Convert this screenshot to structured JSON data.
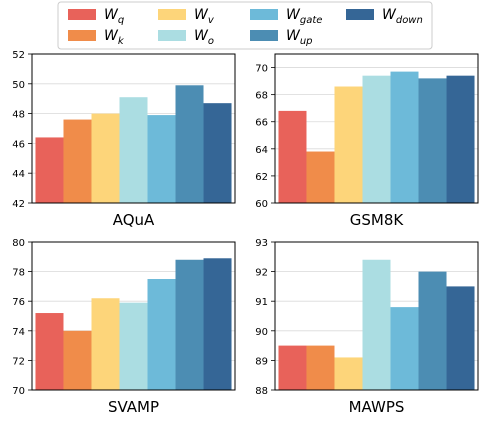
{
  "legend": {
    "placement": "top-center",
    "entries": [
      {
        "base": "W",
        "sub": "q",
        "color": "#e8625a"
      },
      {
        "base": "W",
        "sub": "k",
        "color": "#f08c4a"
      },
      {
        "base": "W",
        "sub": "v",
        "color": "#fdd57a"
      },
      {
        "base": "W",
        "sub": "o",
        "color": "#abdde2"
      },
      {
        "base": "W",
        "sub": "gate",
        "color": "#6dbad9"
      },
      {
        "base": "W",
        "sub": "up",
        "color": "#4c8db3"
      },
      {
        "base": "W",
        "sub": "down",
        "color": "#356696"
      }
    ]
  },
  "chart_data": [
    {
      "type": "bar",
      "title": "AQuA",
      "categories": [
        "Wq",
        "Wk",
        "Wv",
        "Wo",
        "Wgate",
        "Wup",
        "Wdown"
      ],
      "values": [
        46.4,
        47.6,
        48.0,
        49.1,
        47.9,
        49.9,
        48.7
      ],
      "ylim": [
        42,
        52
      ],
      "yticks": [
        "42",
        "44",
        "46",
        "48",
        "50",
        "52"
      ],
      "grid": true
    },
    {
      "type": "bar",
      "title": "GSM8K",
      "categories": [
        "Wq",
        "Wk",
        "Wv",
        "Wo",
        "Wgate",
        "Wup",
        "Wdown"
      ],
      "values": [
        66.8,
        63.8,
        68.6,
        69.4,
        69.7,
        69.2,
        69.4
      ],
      "ylim": [
        60,
        71
      ],
      "yticks": [
        "60",
        "62",
        "64",
        "66",
        "68",
        "70"
      ],
      "grid": true
    },
    {
      "type": "bar",
      "title": "SVAMP",
      "categories": [
        "Wq",
        "Wk",
        "Wv",
        "Wo",
        "Wgate",
        "Wup",
        "Wdown"
      ],
      "values": [
        75.2,
        74.0,
        76.2,
        75.9,
        77.5,
        78.8,
        78.9
      ],
      "ylim": [
        70,
        80
      ],
      "yticks": [
        "70",
        "72",
        "74",
        "76",
        "78",
        "80"
      ],
      "grid": true
    },
    {
      "type": "bar",
      "title": "MAWPS",
      "categories": [
        "Wq",
        "Wk",
        "Wv",
        "Wo",
        "Wgate",
        "Wup",
        "Wdown"
      ],
      "values": [
        89.5,
        89.5,
        89.1,
        92.4,
        90.8,
        92.0,
        91.5
      ],
      "ylim": [
        88,
        93
      ],
      "yticks": [
        "88",
        "89",
        "90",
        "91",
        "92",
        "93"
      ],
      "grid": true
    }
  ]
}
